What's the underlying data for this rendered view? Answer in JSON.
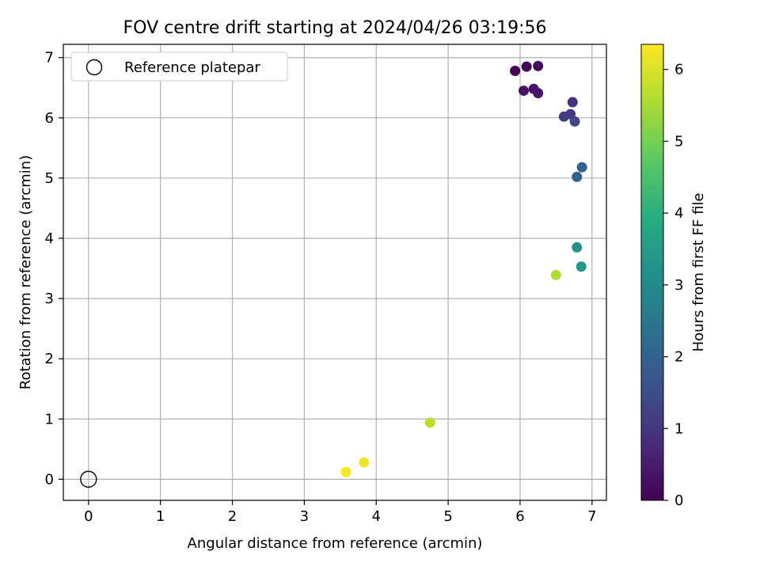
{
  "chart_data": {
    "type": "scatter",
    "title": "FOV centre drift starting at 2024/04/26 03:19:56",
    "xlabel": "Angular distance from reference (arcmin)",
    "ylabel": "Rotation from reference (arcmin)",
    "xlim": [
      -0.35,
      7.2
    ],
    "ylim": [
      -0.35,
      7.22
    ],
    "xticks": [
      "0",
      "1",
      "2",
      "3",
      "4",
      "5",
      "6",
      "7"
    ],
    "yticks": [
      "0",
      "1",
      "2",
      "3",
      "4",
      "5",
      "6",
      "7"
    ],
    "grid": true,
    "legend": {
      "position": "top-left",
      "entries": [
        "Reference platepar"
      ]
    },
    "colorbar": {
      "label": "Hours from first FF file",
      "range": [
        0,
        6.35
      ],
      "ticks": [
        "0",
        "1",
        "2",
        "3",
        "4",
        "5",
        "6"
      ],
      "colormap": "viridis"
    },
    "reference_point": {
      "x": 0,
      "y": 0
    },
    "points": [
      {
        "x": 5.93,
        "y": 6.78,
        "hours": 0.0
      },
      {
        "x": 6.09,
        "y": 6.85,
        "hours": 0.1
      },
      {
        "x": 6.25,
        "y": 6.86,
        "hours": 0.2
      },
      {
        "x": 6.05,
        "y": 6.45,
        "hours": 0.3
      },
      {
        "x": 6.19,
        "y": 6.48,
        "hours": 0.35
      },
      {
        "x": 6.25,
        "y": 6.41,
        "hours": 0.4
      },
      {
        "x": 6.73,
        "y": 6.26,
        "hours": 0.9
      },
      {
        "x": 6.7,
        "y": 6.06,
        "hours": 1.0
      },
      {
        "x": 6.61,
        "y": 6.02,
        "hours": 1.15
      },
      {
        "x": 6.76,
        "y": 5.94,
        "hours": 1.3
      },
      {
        "x": 6.86,
        "y": 5.18,
        "hours": 1.9
      },
      {
        "x": 6.79,
        "y": 5.02,
        "hours": 2.0
      },
      {
        "x": 6.79,
        "y": 3.85,
        "hours": 3.2
      },
      {
        "x": 6.85,
        "y": 3.53,
        "hours": 3.4
      },
      {
        "x": 6.5,
        "y": 3.39,
        "hours": 5.6
      },
      {
        "x": 4.75,
        "y": 0.94,
        "hours": 5.7
      },
      {
        "x": 3.83,
        "y": 0.28,
        "hours": 6.2
      },
      {
        "x": 3.58,
        "y": 0.12,
        "hours": 6.3
      }
    ]
  }
}
